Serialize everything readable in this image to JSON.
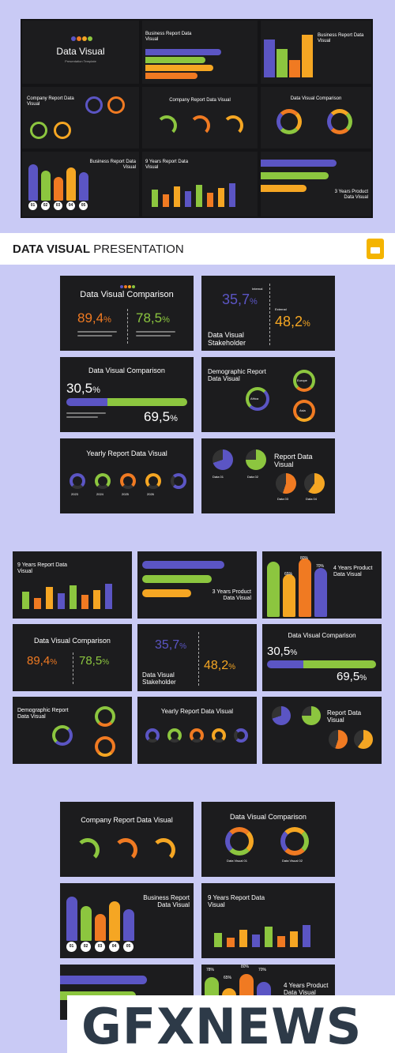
{
  "colors": {
    "purple": "#5b55c4",
    "green": "#8cc63f",
    "orange": "#f07a22",
    "yellow": "#f5a623",
    "dark": "#1c1c1e",
    "page": "#c9caf5"
  },
  "top": {
    "title": "Data Visual",
    "subtitle": "Presentation Template",
    "s2_title": "Business Report Data Visual",
    "s3_title": "Business Report Data Visual",
    "s4_title": "Company Report Data Visual",
    "s5_title": "Company Report Data Visual",
    "s6_title": "Data Visual Comparison",
    "s7_title": "Business Report Data Visual",
    "s8_title": "9 Years Report Data Visual",
    "s9_title": "3 Years Product Data Visual",
    "circles": [
      "01",
      "02",
      "03",
      "04",
      "05"
    ]
  },
  "banner": {
    "bold": "DATA VISUAL",
    "light": " PRESENTATION",
    "icon": "google-slides-icon"
  },
  "mid": {
    "dvc_title": "Data Visual Comparison",
    "dvc_left": "89,4",
    "dvc_right": "78,5",
    "pct": "%",
    "stake_left": "35,7",
    "stake_right": "48,2",
    "stake_title": "Data Visual Stakeholder",
    "internal": "Internal",
    "external": "External",
    "cmp_left": "30,5",
    "cmp_right": "69,5",
    "demo_title": "Demographic Report Data Visual",
    "africa": "Africa",
    "europe": "Europe",
    "asia": "Asia",
    "yearly_title": "Yearly Report Data Visual",
    "years4": [
      "2023",
      "2024",
      "2025",
      "2026"
    ],
    "report_title": "Report Data Visual",
    "data_labels": [
      "Data 01",
      "Data 02",
      "Data 03",
      "Data 04"
    ]
  },
  "lower": {
    "nine_title": "9 Years Report Data Visual",
    "three_title": "3 Years Product Data Visual",
    "four_title": "4 Years Product Data Visual",
    "four_vals": [
      "78%",
      "65%",
      "80%",
      "70%"
    ]
  },
  "bottom": {
    "company_title": "Company Report Data Visual",
    "dvc_title": "Data Visual Comparison",
    "business_title": "Business Report Data Visual",
    "nine_title": "9 Years Report Data Visual",
    "four_title": "4 Years Product Data Visual",
    "four_vals": [
      "78%",
      "65%",
      "80%",
      "70%"
    ],
    "circles": [
      "01",
      "02",
      "03",
      "04",
      "05"
    ],
    "dv_labels": [
      "Data Visual 01",
      "Data Visual 02"
    ]
  },
  "watermark": "GFXNEWS"
}
